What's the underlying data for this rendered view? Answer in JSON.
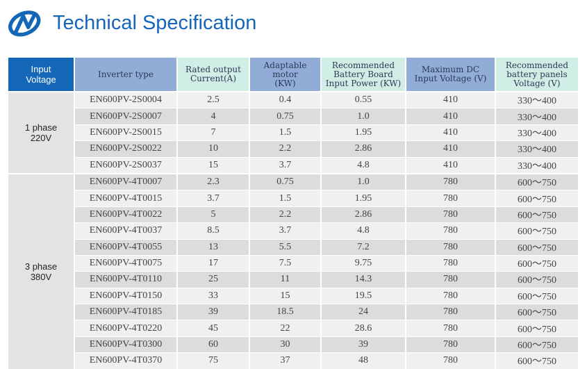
{
  "header": {
    "logo": "brand-logo-icon",
    "title": "Technical Specification",
    "title_color": "#1565b8"
  },
  "table": {
    "columns": [
      "Input\nVoltage",
      "Inverter type",
      "Rated output\nCurrent(A)",
      "Adaptable motor\n(KW)",
      "Recommended\nBattery Board\nInput Power (KW)",
      "Maximum DC\nInput Voltage (V)",
      "Recommended\nbattery panels\nVoltage (V)"
    ],
    "groups": [
      {
        "label": "1 phase\n220V",
        "rows": [
          [
            "EN600PV-2S0004",
            "2.5",
            "0.4",
            "0.55",
            "410",
            "330～400"
          ],
          [
            "EN600PV-2S0007",
            "4",
            "0.75",
            "1.0",
            "410",
            "330～400"
          ],
          [
            "EN600PV-2S0015",
            "7",
            "1.5",
            "1.95",
            "410",
            "330～400"
          ],
          [
            "EN600PV-2S0022",
            "10",
            "2.2",
            "2.86",
            "410",
            "330～400"
          ],
          [
            "EN600PV-2S0037",
            "15",
            "3.7",
            "4.8",
            "410",
            "330～400"
          ]
        ]
      },
      {
        "label": "3 phase\n380V",
        "rows": [
          [
            "EN600PV-4T0007",
            "2.3",
            "0.75",
            "1.0",
            "780",
            "600～750"
          ],
          [
            "EN600PV-4T0015",
            "3.7",
            "1.5",
            "1.95",
            "780",
            "600～750"
          ],
          [
            "EN600PV-4T0022",
            "5",
            "2.2",
            "2.86",
            "780",
            "600～750"
          ],
          [
            "EN600PV-4T0037",
            "8.5",
            "3.7",
            "4.8",
            "780",
            "600～750"
          ],
          [
            "EN600PV-4T0055",
            "13",
            "5.5",
            "7.2",
            "780",
            "600～750"
          ],
          [
            "EN600PV-4T0075",
            "17",
            "7.5",
            "9.75",
            "780",
            "600～750"
          ],
          [
            "EN600PV-4T0110",
            "25",
            "11",
            "14.3",
            "780",
            "600～750"
          ],
          [
            "EN600PV-4T0150",
            "33",
            "15",
            "19.5",
            "780",
            "600～750"
          ],
          [
            "EN600PV-4T0185",
            "39",
            "18.5",
            "24",
            "780",
            "600～750"
          ],
          [
            "EN600PV-4T0220",
            "45",
            "22",
            "28.6",
            "780",
            "600～750"
          ],
          [
            "EN600PV-4T0300",
            "60",
            "30",
            "39",
            "780",
            "600～750"
          ],
          [
            "EN600PV-4T0370",
            "75",
            "37",
            "48",
            "780",
            "600～750"
          ]
        ]
      }
    ],
    "colors": {
      "header_blue": "#1467b7",
      "header_lavender": "#92acd8",
      "header_mint": "#d0ede6",
      "row_light": "#f0f0f0",
      "row_dark": "#dcdcdc",
      "group_bg": "#e3e3e3"
    }
  }
}
